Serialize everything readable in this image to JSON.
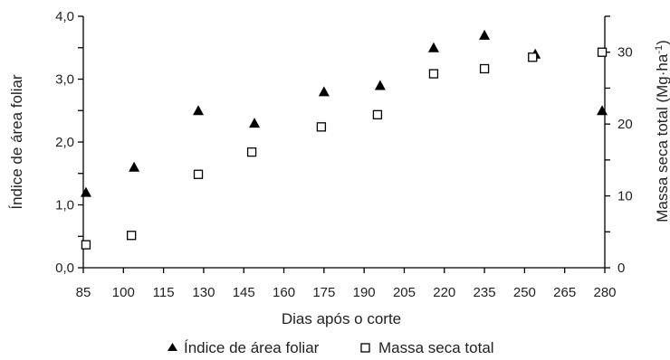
{
  "chart_data": {
    "type": "scatter",
    "title": "",
    "xlabel": "Dias após o corte",
    "ylabel_left": "Índice de área foliar",
    "ylabel_right_main": "Massa seca total (Mg·ha",
    "ylabel_right_sup": "-1",
    "ylabel_right_close": ")",
    "xlim": [
      85,
      280
    ],
    "xticks": [
      85,
      100,
      115,
      130,
      145,
      160,
      175,
      190,
      205,
      220,
      235,
      250,
      265,
      280
    ],
    "ylim_left": [
      0,
      4
    ],
    "yticks_left": [
      0,
      0.5,
      1,
      1.5,
      2,
      2.5,
      3,
      3.5,
      4
    ],
    "yticklabels_left": [
      "0,0",
      "",
      "1,0",
      "",
      "2,0",
      "",
      "3,0",
      "",
      "4,0"
    ],
    "ylim_right": [
      0,
      35
    ],
    "yticks_right": [
      0,
      5,
      10,
      15,
      20,
      25,
      30,
      35
    ],
    "yticklabels_right": [
      "0",
      "",
      "10",
      "",
      "20",
      "",
      "30",
      ""
    ],
    "legend_placement": "bottom",
    "grid": false,
    "series": [
      {
        "name": "Índice de área foliar",
        "axis": "left",
        "marker": "filled-triangle",
        "color": "#000000",
        "x": [
          86,
          104,
          128,
          149,
          175,
          196,
          216,
          235,
          254,
          279
        ],
        "y": [
          1.2,
          1.6,
          2.5,
          2.3,
          2.8,
          2.9,
          3.5,
          3.7,
          3.4,
          2.5
        ]
      },
      {
        "name": "Massa seca total",
        "axis": "right",
        "marker": "open-square",
        "color": "#000000",
        "x": [
          86,
          103,
          128,
          148,
          174,
          195,
          216,
          235,
          253,
          279
        ],
        "y": [
          3.2,
          4.5,
          13.0,
          16.1,
          19.6,
          21.3,
          27.0,
          27.7,
          29.3,
          30.0
        ]
      }
    ]
  }
}
